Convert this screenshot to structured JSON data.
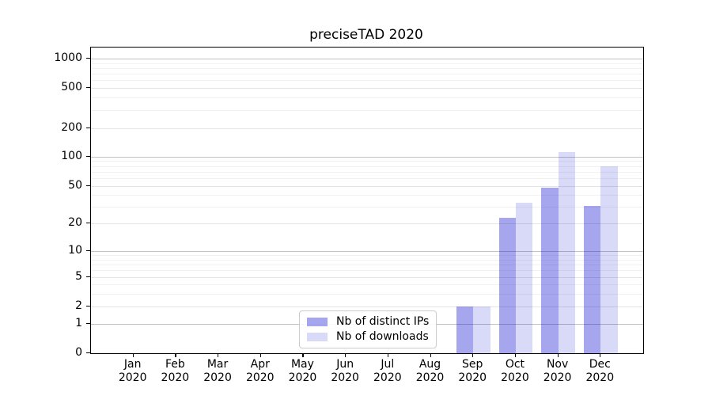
{
  "chart_data": {
    "type": "bar",
    "title": "preciseTAD 2020",
    "categories": [
      "Jan 2020",
      "Feb 2020",
      "Mar 2020",
      "Apr 2020",
      "May 2020",
      "Jun 2020",
      "Jul 2020",
      "Aug 2020",
      "Sep 2020",
      "Oct 2020",
      "Nov 2020",
      "Dec 2020"
    ],
    "series": [
      {
        "name": "Nb of distinct IPs",
        "color": "rgba(0,0,205,0.35)",
        "values": [
          0,
          0,
          0,
          0,
          0,
          0,
          0,
          0,
          2,
          23,
          48,
          31
        ]
      },
      {
        "name": "Nb of downloads",
        "color": "rgba(0,0,205,0.15)",
        "values": [
          0,
          0,
          0,
          0,
          0,
          0,
          0,
          0,
          2,
          33,
          112,
          80
        ]
      }
    ],
    "xlabel": "",
    "ylabel": "",
    "yscale": "log-with-zero",
    "y_ticks": [
      0,
      1,
      2,
      5,
      10,
      20,
      50,
      100,
      200,
      500,
      1000
    ],
    "y_minor_ticks": [
      3,
      4,
      6,
      7,
      8,
      9,
      30,
      40,
      60,
      70,
      80,
      90,
      300,
      400,
      600,
      700,
      800,
      900
    ],
    "ylim": [
      0,
      1300
    ],
    "grid": true,
    "legend": {
      "position": "inside-bottom-center",
      "entries": [
        "Nb of distinct IPs",
        "Nb of downloads"
      ]
    },
    "colors": {
      "bar_ips": "rgba(0,0,205,0.35)",
      "bar_downloads": "rgba(0,0,205,0.15)",
      "grid_major": "#c3c3c3",
      "grid_sub": "#e4e4e4",
      "grid_minor": "#f1f1f1",
      "spine": "#000000",
      "text": "#000000",
      "legend_border": "#cccccc"
    }
  }
}
